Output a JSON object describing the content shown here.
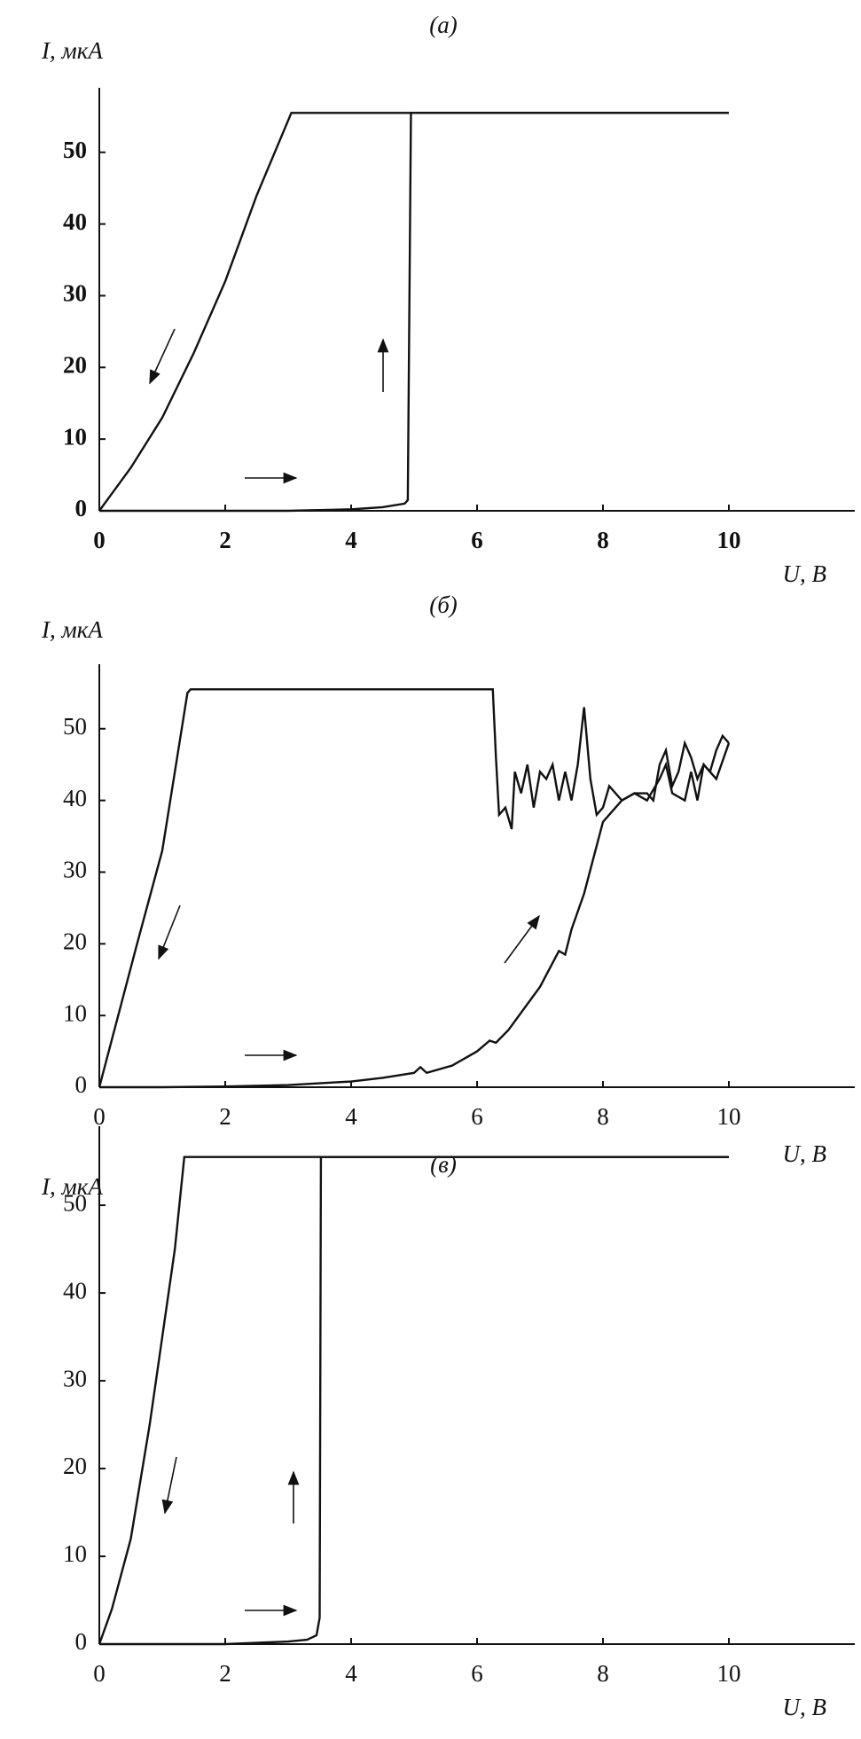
{
  "chart_data": [
    {
      "type": "line",
      "title": "(а)",
      "y_label": "I, мкА",
      "x_label": "U, В",
      "xlim": [
        0,
        12
      ],
      "ylim": [
        0,
        59
      ],
      "xticks": [
        0,
        2,
        4,
        6,
        8,
        10
      ],
      "yticks": [
        0,
        10,
        20,
        30,
        40,
        50
      ],
      "series": [
        {
          "color": "#111111",
          "x": [
            0,
            1,
            2,
            3,
            4,
            4.5,
            4.85,
            4.9,
            4.95,
            10
          ],
          "values": [
            0,
            0,
            0,
            0,
            0.2,
            0.5,
            1,
            1.5,
            55.5,
            55.5
          ]
        },
        {
          "color": "#111111",
          "x": [
            10,
            3.05,
            2.5,
            2,
            1.5,
            1,
            0.5,
            0
          ],
          "values": [
            55.5,
            55.5,
            44,
            32,
            22,
            13,
            6,
            0
          ]
        }
      ]
    },
    {
      "type": "line",
      "title": "(б)",
      "y_label": "I, мкА",
      "x_label": "U, В",
      "xlim": [
        0,
        12
      ],
      "ylim": [
        0,
        59
      ],
      "xticks": [
        0,
        2,
        4,
        6,
        8,
        10
      ],
      "yticks": [
        0,
        10,
        20,
        30,
        40,
        50
      ],
      "series": [
        {
          "color": "#111111",
          "x": [
            0,
            1,
            2,
            3,
            4,
            4.5,
            5,
            5.1,
            5.2,
            5.6,
            6,
            6.2,
            6.3,
            6.5,
            7,
            7.3,
            7.4,
            7.5,
            7.7,
            8,
            8.3,
            8.5,
            8.7,
            8.9,
            9.0,
            9.1,
            9.3,
            9.4,
            9.5,
            9.6,
            9.8,
            10
          ],
          "values": [
            0,
            0,
            0.1,
            0.3,
            0.8,
            1.3,
            2,
            2.8,
            2,
            3,
            5,
            6.5,
            6.2,
            8,
            14,
            19,
            18.5,
            22,
            27,
            37,
            40,
            41,
            40,
            43,
            45,
            41,
            40,
            44,
            40,
            45,
            43,
            48
          ]
        },
        {
          "color": "#111111",
          "x": [
            10,
            9.9,
            9.8,
            9.7,
            9.6,
            9.5,
            9.4,
            9.3,
            9.2,
            9.1,
            9.0,
            8.9,
            8.8,
            8.7,
            8.5,
            8.3,
            8.1,
            8.0,
            7.9,
            7.8,
            7.7,
            7.6,
            7.5,
            7.4,
            7.3,
            7.2,
            7.1,
            7.0,
            6.9,
            6.8,
            6.7,
            6.6,
            6.55,
            6.45,
            6.35,
            6.3,
            6.25,
            1.45,
            1.4,
            1.2,
            1,
            0.6,
            0.3,
            0
          ],
          "values": [
            48,
            49,
            47,
            44,
            45,
            43,
            46,
            48,
            44,
            42,
            47,
            45,
            40,
            41,
            41,
            40,
            42,
            39,
            38,
            43,
            53,
            45,
            40,
            44,
            40,
            45,
            43,
            44,
            39,
            45,
            41,
            44,
            36,
            39,
            38,
            46,
            55.5,
            55.5,
            55,
            44,
            33,
            20,
            10,
            0
          ]
        }
      ]
    },
    {
      "type": "line",
      "title": "(в)",
      "y_label": "I, мкА",
      "x_label": "U, В",
      "xlim": [
        0,
        12
      ],
      "ylim": [
        0,
        59
      ],
      "xticks": [
        0,
        2,
        4,
        6,
        8,
        10
      ],
      "yticks": [
        0,
        10,
        20,
        30,
        40,
        50
      ],
      "series": [
        {
          "color": "#111111",
          "x": [
            0,
            1,
            2,
            3,
            3.3,
            3.45,
            3.5,
            3.52,
            10
          ],
          "values": [
            0,
            0,
            0,
            0.3,
            0.5,
            1,
            3,
            55.5,
            55.5
          ]
        },
        {
          "color": "#111111",
          "x": [
            10,
            1.35,
            1.2,
            1,
            0.8,
            0.5,
            0.2,
            0
          ],
          "values": [
            55.5,
            55.5,
            45,
            35,
            25,
            12,
            4,
            0
          ]
        }
      ]
    }
  ]
}
